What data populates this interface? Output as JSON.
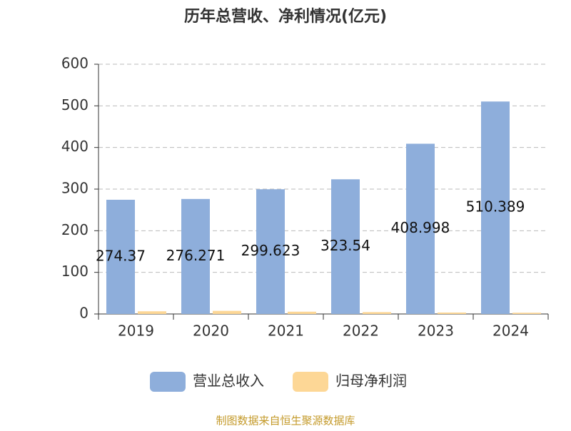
{
  "chart_data": {
    "type": "bar",
    "title": "历年总营收、净利情况(亿元)",
    "categories": [
      "2019",
      "2020",
      "2021",
      "2022",
      "2023",
      "2024"
    ],
    "series": [
      {
        "name": "营业总收入",
        "color": "#8eaedb",
        "values": [
          274.37,
          276.271,
          299.623,
          323.54,
          408.998,
          510.389
        ],
        "show_labels": true
      },
      {
        "name": "归母净利润",
        "color": "#fdd796",
        "values": [
          6.5,
          7.5,
          5.5,
          4.5,
          3.5,
          3
        ],
        "show_labels": false
      }
    ],
    "ylim": [
      0,
      600
    ],
    "yticks": [
      0,
      100,
      200,
      300,
      400,
      500,
      600
    ],
    "grid": true,
    "source": "制图数据来自恒生聚源数据库"
  }
}
